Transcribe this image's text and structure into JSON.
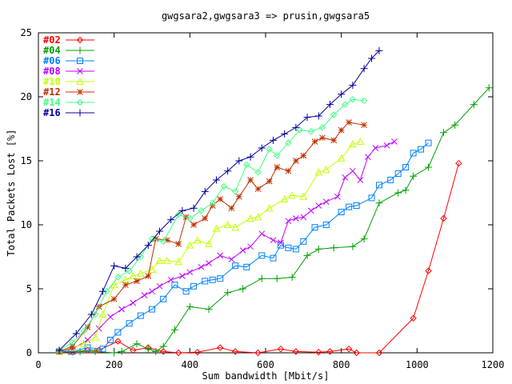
{
  "chart_data": {
    "type": "line",
    "title": "gwgsara2,gwgsara3 => prusin,gwgsara5",
    "xlabel": "Sum bandwidth [Mbit/s]",
    "ylabel": "Total Packets Lost [%]",
    "xlim": [
      0,
      1200
    ],
    "ylim": [
      0,
      25
    ],
    "xticks": [
      0,
      200,
      400,
      600,
      800,
      1000,
      1200
    ],
    "yticks": [
      0,
      5,
      10,
      15,
      20,
      25
    ],
    "grid": false,
    "legend_position": "top-left",
    "series": [
      {
        "name": "#02",
        "color": "#ff0000",
        "marker": "diamond",
        "x": [
          55,
          90,
          130,
          160,
          210,
          250,
          290,
          330,
          370,
          420,
          480,
          520,
          580,
          640,
          680,
          740,
          770,
          820,
          840,
          900,
          990,
          1030,
          1070,
          1110
        ],
        "y": [
          0.1,
          0.05,
          0.2,
          0.2,
          0.9,
          0.2,
          0.4,
          0.1,
          0.0,
          0.05,
          0.4,
          0.1,
          0.0,
          0.3,
          0.1,
          0.05,
          0.1,
          0.3,
          0.0,
          0.0,
          2.7,
          6.4,
          10.5,
          14.8
        ]
      },
      {
        "name": "#04",
        "color": "#00a000",
        "marker": "plus",
        "x": [
          55,
          80,
          110,
          150,
          200,
          220,
          260,
          290,
          310,
          330,
          360,
          400,
          450,
          500,
          540,
          590,
          630,
          670,
          710,
          740,
          780,
          830,
          860,
          900,
          950,
          970,
          990,
          1030,
          1070,
          1100,
          1150,
          1190
        ],
        "y": [
          0.1,
          0.1,
          0.1,
          0.1,
          0.0,
          0.1,
          0.7,
          0.3,
          0.1,
          0.5,
          1.8,
          3.6,
          3.4,
          4.7,
          5.0,
          5.8,
          5.8,
          5.9,
          7.6,
          8.1,
          8.2,
          8.3,
          8.9,
          11.7,
          12.5,
          12.7,
          13.8,
          14.5,
          17.2,
          17.8,
          19.4,
          20.7
        ]
      },
      {
        "name": "#06",
        "color": "#0080ff",
        "marker": "square",
        "x": [
          55,
          90,
          130,
          170,
          190,
          210,
          240,
          270,
          300,
          330,
          360,
          390,
          410,
          440,
          460,
          480,
          520,
          550,
          590,
          620,
          640,
          660,
          680,
          700,
          730,
          760,
          800,
          820,
          840,
          880,
          900,
          930,
          950,
          970,
          990,
          1010,
          1030
        ],
        "y": [
          0.1,
          0.1,
          0.4,
          0.3,
          1.0,
          1.6,
          2.3,
          2.9,
          3.4,
          4.2,
          5.3,
          4.8,
          5.2,
          5.6,
          5.7,
          5.8,
          6.8,
          6.7,
          7.6,
          7.4,
          8.4,
          8.2,
          8.1,
          8.7,
          9.8,
          10.0,
          11.0,
          11.4,
          11.5,
          12.1,
          13.1,
          13.5,
          14.0,
          14.5,
          15.6,
          15.9,
          16.4
        ]
      },
      {
        "name": "#08",
        "color": "#c000ff",
        "marker": "cross",
        "x": [
          55,
          90,
          130,
          160,
          190,
          220,
          250,
          280,
          300,
          320,
          350,
          380,
          400,
          430,
          450,
          480,
          510,
          540,
          560,
          590,
          620,
          640,
          660,
          680,
          700,
          720,
          740,
          760,
          790,
          810,
          830,
          850,
          870,
          890,
          920,
          940
        ],
        "y": [
          0.1,
          0.3,
          1.0,
          1.9,
          2.8,
          3.4,
          3.9,
          4.5,
          4.8,
          5.2,
          5.7,
          6.0,
          6.3,
          6.7,
          7.0,
          7.6,
          7.3,
          8.0,
          8.3,
          9.3,
          8.8,
          8.6,
          10.3,
          10.5,
          10.6,
          11.1,
          11.5,
          11.8,
          12.2,
          13.7,
          14.2,
          13.5,
          15.3,
          16.0,
          16.2,
          16.5
        ]
      },
      {
        "name": "#10",
        "color": "#c0ff00",
        "marker": "triangle",
        "x": [
          55,
          90,
          120,
          150,
          170,
          200,
          230,
          250,
          270,
          300,
          320,
          340,
          370,
          400,
          420,
          450,
          470,
          500,
          520,
          560,
          580,
          610,
          650,
          670,
          700,
          740,
          760,
          800,
          830,
          850
        ],
        "y": [
          0.1,
          0.4,
          0.7,
          1.2,
          3.0,
          5.3,
          5.7,
          6.0,
          6.2,
          6.5,
          7.2,
          7.2,
          7.1,
          8.4,
          8.8,
          8.5,
          9.7,
          10.0,
          9.8,
          10.5,
          10.6,
          11.3,
          12.0,
          12.3,
          12.2,
          14.1,
          14.3,
          15.2,
          16.3,
          16.5
        ]
      },
      {
        "name": "#12",
        "color": "#c03000",
        "marker": "star",
        "x": [
          55,
          90,
          130,
          160,
          200,
          230,
          260,
          290,
          310,
          340,
          370,
          390,
          410,
          440,
          460,
          480,
          510,
          530,
          560,
          580,
          610,
          630,
          660,
          680,
          700,
          730,
          750,
          780,
          800,
          820,
          860
        ],
        "y": [
          0.1,
          0.5,
          2.0,
          3.6,
          4.2,
          5.3,
          5.6,
          6.0,
          8.9,
          8.8,
          8.5,
          10.6,
          10.0,
          10.5,
          11.5,
          12.0,
          11.3,
          12.2,
          13.5,
          12.8,
          13.4,
          14.5,
          14.2,
          15.0,
          15.4,
          16.5,
          16.8,
          16.6,
          17.4,
          18.0,
          17.8
        ]
      },
      {
        "name": "#14",
        "color": "#40ff80",
        "marker": "diamond",
        "x": [
          55,
          90,
          120,
          150,
          180,
          210,
          240,
          270,
          300,
          330,
          370,
          400,
          430,
          460,
          490,
          520,
          550,
          580,
          610,
          630,
          660,
          690,
          720,
          750,
          780,
          810,
          830,
          860
        ],
        "y": [
          0.2,
          0.8,
          1.7,
          3.0,
          4.8,
          5.9,
          6.4,
          7.5,
          8.9,
          8.7,
          10.8,
          10.5,
          11.1,
          11.7,
          13.0,
          12.6,
          14.7,
          14.1,
          15.9,
          15.4,
          16.4,
          17.4,
          17.3,
          17.6,
          18.6,
          19.4,
          19.8,
          19.7
        ]
      },
      {
        "name": "#16",
        "color": "#0000a0",
        "marker": "plus",
        "x": [
          55,
          100,
          140,
          170,
          200,
          230,
          260,
          290,
          320,
          350,
          380,
          410,
          440,
          470,
          500,
          530,
          560,
          590,
          620,
          650,
          680,
          710,
          740,
          770,
          800,
          830,
          860,
          880,
          900
        ],
        "y": [
          0.2,
          1.5,
          3.0,
          4.8,
          6.8,
          6.6,
          7.5,
          8.4,
          9.5,
          10.4,
          11.1,
          11.3,
          12.6,
          13.5,
          14.2,
          15.0,
          15.3,
          16.0,
          16.6,
          17.1,
          17.6,
          18.4,
          18.5,
          19.4,
          20.2,
          20.9,
          22.2,
          23.0,
          23.6
        ]
      }
    ]
  }
}
